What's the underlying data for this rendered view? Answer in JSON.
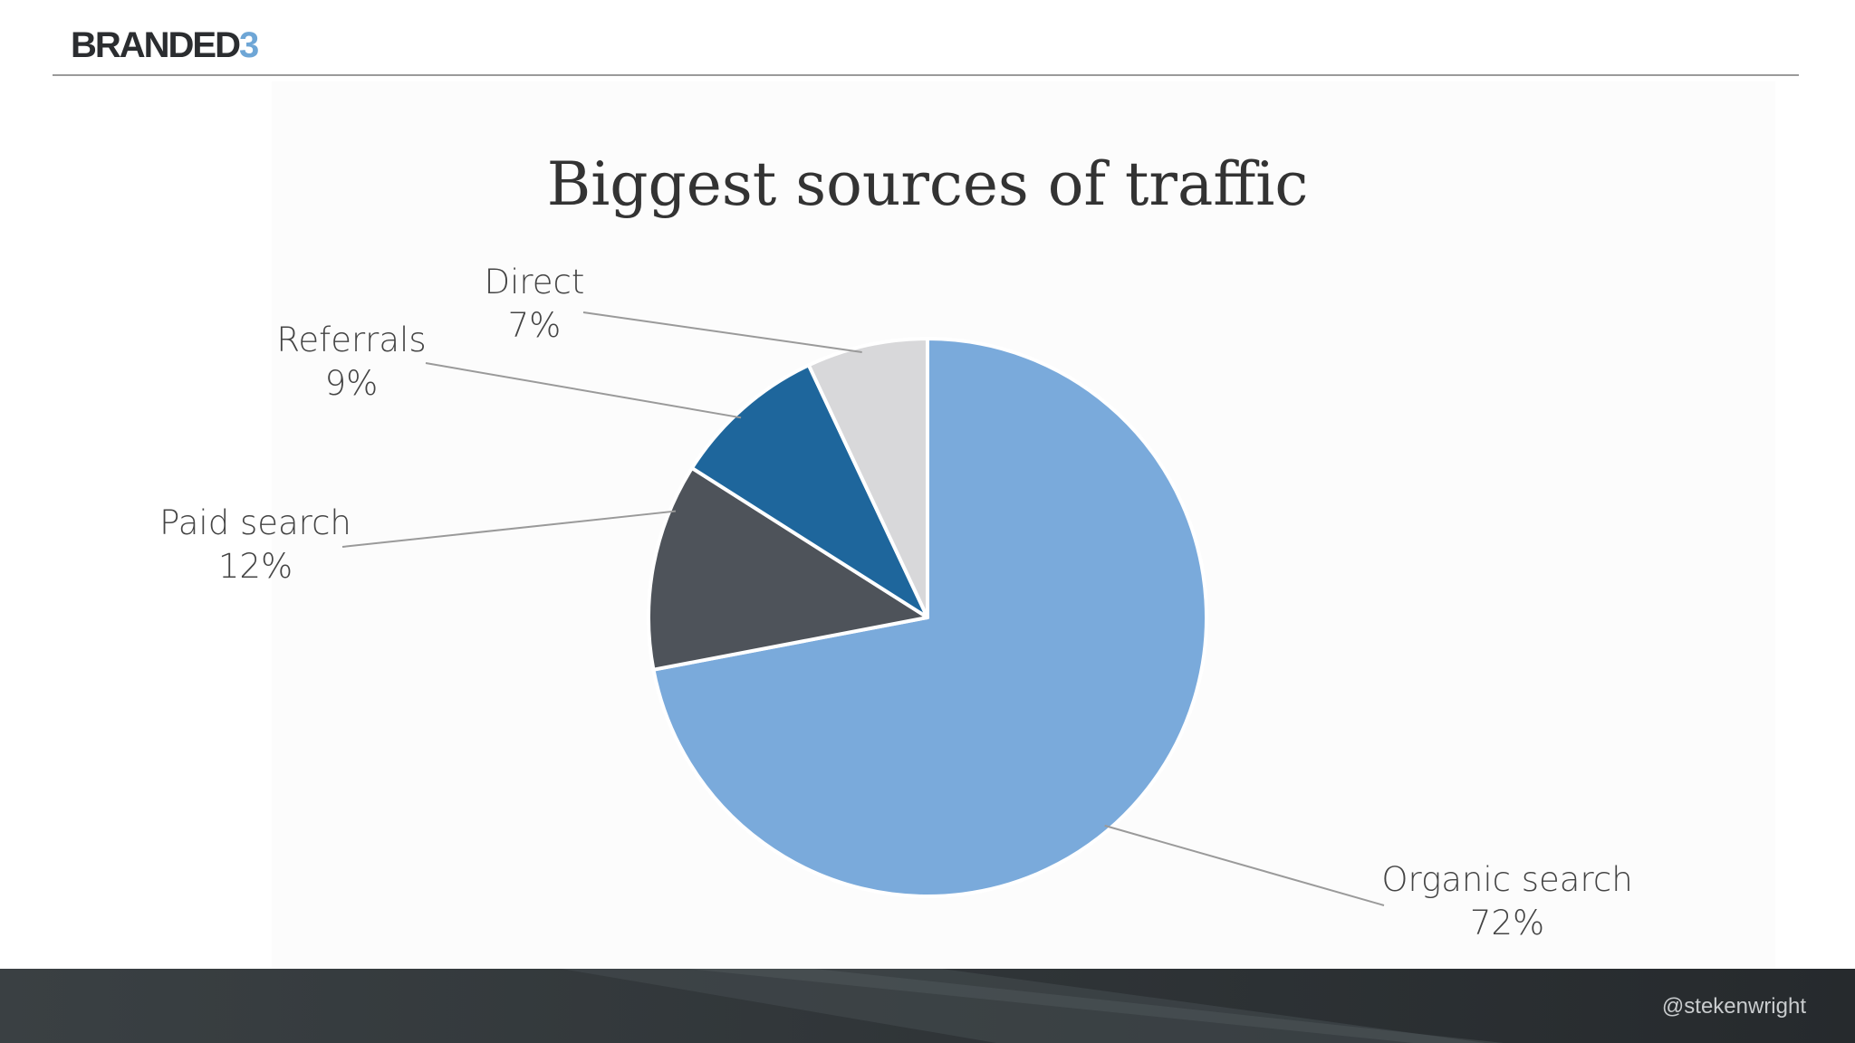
{
  "brand": {
    "logo_main": "BRANDED",
    "logo_accent": "3"
  },
  "footer": {
    "handle": "@stekenwright"
  },
  "colors": {
    "brand_accent": "#6ea6d6",
    "footer_bg": "#33393c"
  },
  "chart_data": {
    "type": "pie",
    "title": "Biggest sources of traffic",
    "start_angle_deg": 0,
    "direction": "clockwise",
    "slices": [
      {
        "label": "Organic search",
        "value": 72,
        "value_label": "72%",
        "color": "#7aaadb"
      },
      {
        "label": "Paid search",
        "value": 12,
        "value_label": "12%",
        "color": "#4e535a"
      },
      {
        "label": "Referrals",
        "value": 9,
        "value_label": "9%",
        "color": "#1e669c"
      },
      {
        "label": "Direct",
        "value": 7,
        "value_label": "7%",
        "color": "#d8d8da"
      }
    ]
  }
}
